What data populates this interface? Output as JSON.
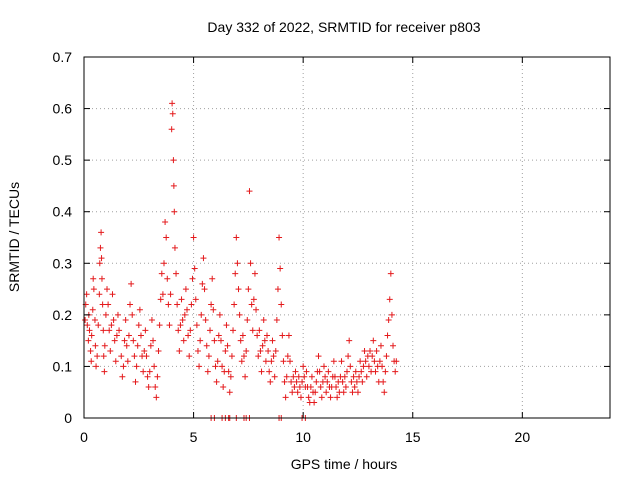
{
  "chart_data": {
    "type": "scatter",
    "title": "Day 332 of 2022, SRMTID for receiver p803",
    "xlabel": "GPS time / hours",
    "ylabel": "SRMTID / TECUs",
    "xlim": [
      0,
      24
    ],
    "ylim": [
      0,
      0.7
    ],
    "xticks": [
      0,
      5,
      10,
      15,
      20
    ],
    "yticks": [
      0,
      0.1,
      0.2,
      0.3,
      0.4,
      0.5,
      0.6,
      0.7
    ],
    "grid": true,
    "legend": "none",
    "marker": "plus",
    "colors": {
      "series": "#e41a1c",
      "grid": "#a0a0a0",
      "axis": "#000000"
    },
    "series": [
      {
        "values": [
          [
            0.05,
            0.19
          ],
          [
            0.08,
            0.22
          ],
          [
            0.12,
            0.24
          ],
          [
            0.15,
            0.18
          ],
          [
            0.2,
            0.15
          ],
          [
            0.22,
            0.2
          ],
          [
            0.25,
            0.17
          ],
          [
            0.3,
            0.13
          ],
          [
            0.33,
            0.11
          ],
          [
            0.35,
            0.16
          ],
          [
            0.4,
            0.21
          ],
          [
            0.42,
            0.27
          ],
          [
            0.45,
            0.25
          ],
          [
            0.5,
            0.19
          ],
          [
            0.52,
            0.14
          ],
          [
            0.55,
            0.1
          ],
          [
            0.6,
            0.12
          ],
          [
            0.65,
            0.18
          ],
          [
            0.7,
            0.24
          ],
          [
            0.72,
            0.3
          ],
          [
            0.75,
            0.33
          ],
          [
            0.78,
            0.36
          ],
          [
            0.8,
            0.31
          ],
          [
            0.82,
            0.27
          ],
          [
            0.85,
            0.22
          ],
          [
            0.88,
            0.17
          ],
          [
            0.9,
            0.12
          ],
          [
            0.93,
            0.09
          ],
          [
            0.95,
            0.14
          ],
          [
            1.0,
            0.2
          ],
          [
            1.05,
            0.25
          ],
          [
            1.1,
            0.22
          ],
          [
            1.15,
            0.17
          ],
          [
            1.2,
            0.13
          ],
          [
            1.25,
            0.18
          ],
          [
            1.3,
            0.24
          ],
          [
            1.35,
            0.19
          ],
          [
            1.4,
            0.15
          ],
          [
            1.45,
            0.11
          ],
          [
            1.5,
            0.16
          ],
          [
            1.55,
            0.2
          ],
          [
            1.6,
            0.17
          ],
          [
            1.7,
            0.12
          ],
          [
            1.75,
            0.08
          ],
          [
            1.8,
            0.1
          ],
          [
            1.85,
            0.15
          ],
          [
            1.9,
            0.19
          ],
          [
            1.95,
            0.14
          ],
          [
            2.0,
            0.11
          ],
          [
            2.05,
            0.16
          ],
          [
            2.1,
            0.22
          ],
          [
            2.15,
            0.26
          ],
          [
            2.2,
            0.2
          ],
          [
            2.25,
            0.15
          ],
          [
            2.3,
            0.12
          ],
          [
            2.35,
            0.07
          ],
          [
            2.4,
            0.1
          ],
          [
            2.45,
            0.14
          ],
          [
            2.5,
            0.18
          ],
          [
            2.55,
            0.21
          ],
          [
            2.6,
            0.16
          ],
          [
            2.65,
            0.12
          ],
          [
            2.7,
            0.09
          ],
          [
            2.75,
            0.13
          ],
          [
            2.8,
            0.17
          ],
          [
            2.85,
            0.12
          ],
          [
            2.9,
            0.08
          ],
          [
            2.95,
            0.06
          ],
          [
            3.0,
            0.09
          ],
          [
            3.05,
            0.14
          ],
          [
            3.1,
            0.19
          ],
          [
            3.15,
            0.15
          ],
          [
            3.2,
            0.1
          ],
          [
            3.25,
            0.06
          ],
          [
            3.3,
            0.04
          ],
          [
            3.35,
            0.08
          ],
          [
            3.4,
            0.13
          ],
          [
            3.45,
            0.18
          ],
          [
            3.5,
            0.23
          ],
          [
            3.55,
            0.28
          ],
          [
            3.6,
            0.24
          ],
          [
            3.65,
            0.3
          ],
          [
            3.7,
            0.38
          ],
          [
            3.75,
            0.35
          ],
          [
            3.8,
            0.27
          ],
          [
            3.85,
            0.22
          ],
          [
            3.9,
            0.18
          ],
          [
            3.95,
            0.24
          ],
          [
            4.0,
            0.56
          ],
          [
            4.02,
            0.61
          ],
          [
            4.05,
            0.59
          ],
          [
            4.08,
            0.5
          ],
          [
            4.1,
            0.45
          ],
          [
            4.12,
            0.4
          ],
          [
            4.15,
            0.33
          ],
          [
            4.2,
            0.28
          ],
          [
            4.25,
            0.22
          ],
          [
            4.3,
            0.17
          ],
          [
            4.35,
            0.13
          ],
          [
            4.4,
            0.18
          ],
          [
            4.45,
            0.23
          ],
          [
            4.5,
            0.19
          ],
          [
            4.55,
            0.15
          ],
          [
            4.6,
            0.2
          ],
          [
            4.65,
            0.25
          ],
          [
            4.7,
            0.21
          ],
          [
            4.75,
            0.16
          ],
          [
            4.8,
            0.12
          ],
          [
            4.85,
            0.17
          ],
          [
            4.9,
            0.22
          ],
          [
            4.95,
            0.27
          ],
          [
            5.0,
            0.35
          ],
          [
            5.05,
            0.29
          ],
          [
            5.1,
            0.23
          ],
          [
            5.15,
            0.18
          ],
          [
            5.2,
            0.13
          ],
          [
            5.25,
            0.1
          ],
          [
            5.3,
            0.15
          ],
          [
            5.35,
            0.2
          ],
          [
            5.4,
            0.26
          ],
          [
            5.45,
            0.31
          ],
          [
            5.5,
            0.25
          ],
          [
            5.55,
            0.19
          ],
          [
            5.6,
            0.14
          ],
          [
            5.65,
            0.09
          ],
          [
            5.7,
            0.12
          ],
          [
            5.75,
            0.17
          ],
          [
            5.8,
            0.22
          ],
          [
            5.85,
            0.27
          ],
          [
            5.9,
            0.21
          ],
          [
            5.95,
            0.15
          ],
          [
            6.0,
            0.1
          ],
          [
            6.05,
            0.07
          ],
          [
            6.1,
            0.11
          ],
          [
            6.15,
            0.16
          ],
          [
            6.2,
            0.2
          ],
          [
            6.25,
            0.15
          ],
          [
            6.3,
            0.1
          ],
          [
            6.35,
            0.06
          ],
          [
            6.4,
            0.09
          ],
          [
            6.45,
            0.13
          ],
          [
            6.5,
            0.18
          ],
          [
            6.55,
            0.14
          ],
          [
            6.6,
            0.09
          ],
          [
            6.65,
            0.05
          ],
          [
            6.7,
            0.08
          ],
          [
            6.75,
            0.12
          ],
          [
            6.8,
            0.17
          ],
          [
            6.85,
            0.22
          ],
          [
            6.9,
            0.28
          ],
          [
            6.95,
            0.35
          ],
          [
            7.0,
            0.3
          ],
          [
            7.05,
            0.25
          ],
          [
            7.1,
            0.2
          ],
          [
            7.15,
            0.15
          ],
          [
            7.2,
            0.11
          ],
          [
            7.25,
            0.16
          ],
          [
            7.3,
            0.12
          ],
          [
            7.35,
            0.08
          ],
          [
            7.4,
            0.13
          ],
          [
            7.45,
            0.19
          ],
          [
            7.5,
            0.25
          ],
          [
            7.55,
            0.44
          ],
          [
            7.6,
            0.3
          ],
          [
            7.65,
            0.22
          ],
          [
            7.7,
            0.17
          ],
          [
            7.75,
            0.23
          ],
          [
            7.8,
            0.28
          ],
          [
            7.85,
            0.21
          ],
          [
            7.9,
            0.16
          ],
          [
            7.95,
            0.12
          ],
          [
            8.0,
            0.17
          ],
          [
            8.05,
            0.13
          ],
          [
            8.1,
            0.09
          ],
          [
            8.15,
            0.14
          ],
          [
            8.2,
            0.19
          ],
          [
            8.25,
            0.15
          ],
          [
            8.3,
            0.11
          ],
          [
            8.35,
            0.16
          ],
          [
            8.4,
            0.13
          ],
          [
            8.45,
            0.09
          ],
          [
            8.5,
            0.07
          ],
          [
            8.55,
            0.11
          ],
          [
            8.6,
            0.15
          ],
          [
            8.65,
            0.12
          ],
          [
            8.7,
            0.08
          ],
          [
            8.75,
            0.13
          ],
          [
            8.8,
            0.19
          ],
          [
            8.85,
            0.25
          ],
          [
            8.9,
            0.35
          ],
          [
            8.95,
            0.29
          ],
          [
            9.0,
            0.22
          ],
          [
            9.05,
            0.16
          ],
          [
            9.1,
            0.11
          ],
          [
            9.15,
            0.07
          ],
          [
            9.2,
            0.04
          ],
          [
            9.25,
            0.08
          ],
          [
            9.3,
            0.12
          ],
          [
            9.35,
            0.16
          ],
          [
            9.4,
            0.11
          ],
          [
            9.45,
            0.07
          ],
          [
            9.5,
            0.05
          ],
          [
            9.55,
            0.08
          ],
          [
            9.6,
            0.06
          ],
          [
            9.65,
            0.09
          ],
          [
            9.7,
            0.07
          ],
          [
            9.75,
            0.05
          ],
          [
            9.8,
            0.08
          ],
          [
            9.85,
            0.06
          ],
          [
            9.9,
            0.04
          ],
          [
            9.95,
            0.07
          ],
          [
            10.0,
            0.1
          ],
          [
            10.05,
            0.08
          ],
          [
            10.1,
            0.06
          ],
          [
            10.15,
            0.09
          ],
          [
            10.2,
            0.06
          ],
          [
            10.25,
            0.04
          ],
          [
            10.3,
            0.03
          ],
          [
            10.35,
            0.06
          ],
          [
            10.4,
            0.08
          ],
          [
            10.45,
            0.05
          ],
          [
            10.5,
            0.03
          ],
          [
            10.55,
            0.05
          ],
          [
            10.6,
            0.07
          ],
          [
            10.65,
            0.09
          ],
          [
            10.7,
            0.12
          ],
          [
            10.75,
            0.09
          ],
          [
            10.8,
            0.06
          ],
          [
            10.85,
            0.04
          ],
          [
            10.9,
            0.07
          ],
          [
            10.95,
            0.1
          ],
          [
            11.0,
            0.08
          ],
          [
            11.05,
            0.05
          ],
          [
            11.1,
            0.07
          ],
          [
            11.15,
            0.09
          ],
          [
            11.2,
            0.06
          ],
          [
            11.25,
            0.04
          ],
          [
            11.3,
            0.06
          ],
          [
            11.35,
            0.08
          ],
          [
            11.4,
            0.11
          ],
          [
            11.45,
            0.08
          ],
          [
            11.5,
            0.06
          ],
          [
            11.55,
            0.04
          ],
          [
            11.6,
            0.07
          ],
          [
            11.65,
            0.05
          ],
          [
            11.7,
            0.08
          ],
          [
            11.75,
            0.11
          ],
          [
            11.8,
            0.07
          ],
          [
            11.85,
            0.05
          ],
          [
            11.9,
            0.08
          ],
          [
            11.95,
            0.06
          ],
          [
            12.0,
            0.09
          ],
          [
            12.05,
            0.12
          ],
          [
            12.1,
            0.15
          ],
          [
            12.15,
            0.1
          ],
          [
            12.2,
            0.07
          ],
          [
            12.25,
            0.05
          ],
          [
            12.3,
            0.08
          ],
          [
            12.35,
            0.06
          ],
          [
            12.4,
            0.09
          ],
          [
            12.45,
            0.07
          ],
          [
            12.5,
            0.05
          ],
          [
            12.55,
            0.08
          ],
          [
            12.6,
            0.11
          ],
          [
            12.65,
            0.09
          ],
          [
            12.7,
            0.07
          ],
          [
            12.75,
            0.1
          ],
          [
            12.8,
            0.13
          ],
          [
            12.85,
            0.11
          ],
          [
            12.9,
            0.08
          ],
          [
            12.95,
            0.12
          ],
          [
            13.0,
            0.1
          ],
          [
            13.05,
            0.13
          ],
          [
            13.1,
            0.09
          ],
          [
            13.15,
            0.12
          ],
          [
            13.2,
            0.15
          ],
          [
            13.25,
            0.11
          ],
          [
            13.3,
            0.09
          ],
          [
            13.35,
            0.13
          ],
          [
            13.4,
            0.1
          ],
          [
            13.45,
            0.07
          ],
          [
            13.5,
            0.11
          ],
          [
            13.55,
            0.14
          ],
          [
            13.6,
            0.1
          ],
          [
            13.65,
            0.07
          ],
          [
            13.7,
            0.05
          ],
          [
            13.75,
            0.09
          ],
          [
            13.8,
            0.12
          ],
          [
            13.85,
            0.16
          ],
          [
            13.9,
            0.19
          ],
          [
            13.95,
            0.23
          ],
          [
            14.0,
            0.28
          ],
          [
            14.05,
            0.2
          ],
          [
            14.1,
            0.14
          ],
          [
            14.15,
            0.11
          ],
          [
            14.2,
            0.09
          ],
          [
            14.25,
            0.11
          ],
          [
            5.8,
            0.0
          ],
          [
            5.95,
            0.0
          ],
          [
            6.3,
            0.0
          ],
          [
            6.45,
            0.0
          ],
          [
            6.6,
            0.0
          ],
          [
            6.65,
            0.0
          ],
          [
            6.95,
            0.0
          ],
          [
            7.3,
            0.0
          ],
          [
            7.4,
            0.0
          ],
          [
            7.55,
            0.0
          ],
          [
            8.9,
            0.0
          ],
          [
            9.0,
            0.0
          ],
          [
            9.95,
            0.0
          ],
          [
            10.1,
            0.0
          ]
        ]
      }
    ]
  }
}
